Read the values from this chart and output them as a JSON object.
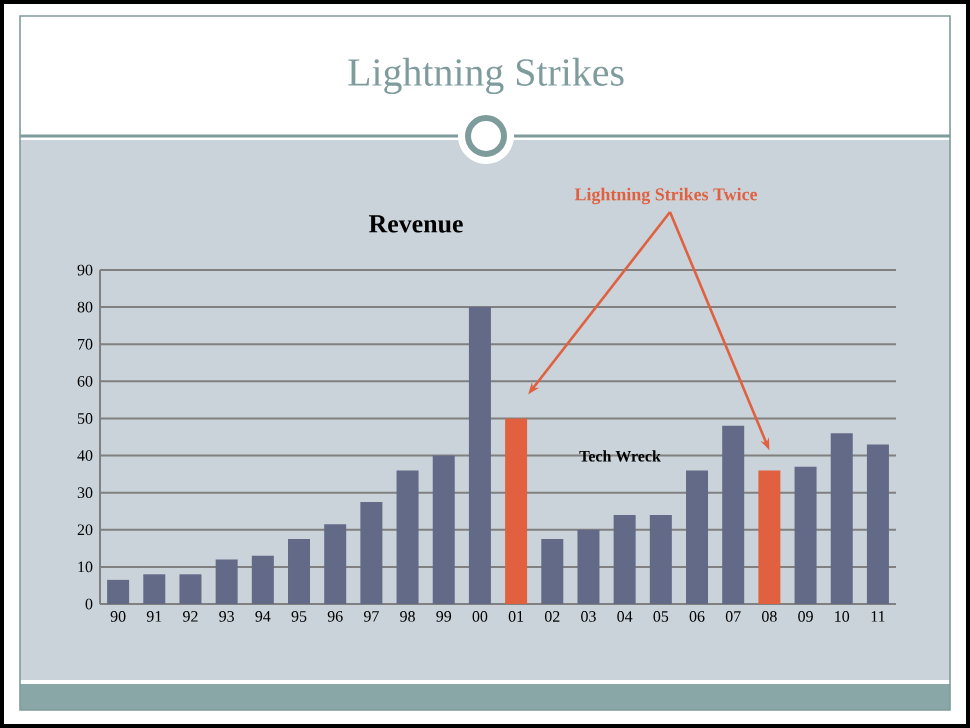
{
  "chart_data": {
    "type": "bar",
    "title": "Lightning Strikes",
    "subtitle": "Revenue",
    "categories": [
      "90",
      "91",
      "92",
      "93",
      "94",
      "95",
      "96",
      "97",
      "98",
      "99",
      "00",
      "01",
      "02",
      "03",
      "04",
      "05",
      "06",
      "07",
      "08",
      "09",
      "10",
      "11"
    ],
    "values": [
      6.5,
      8,
      8,
      12,
      13,
      17.5,
      21.5,
      27.5,
      36,
      40,
      80,
      50,
      17.5,
      20,
      24,
      24,
      36,
      48,
      36,
      37,
      46,
      43
    ],
    "colors": [
      "#636a87",
      "#636a87",
      "#636a87",
      "#636a87",
      "#636a87",
      "#636a87",
      "#636a87",
      "#636a87",
      "#636a87",
      "#636a87",
      "#636a87",
      "#e0603f",
      "#636a87",
      "#636a87",
      "#636a87",
      "#636a87",
      "#636a87",
      "#636a87",
      "#e0603f",
      "#636a87",
      "#636a87",
      "#636a87"
    ],
    "ylim": [
      0,
      90
    ],
    "yticks": [
      0,
      10,
      20,
      30,
      40,
      50,
      60,
      70,
      80,
      90
    ],
    "grid": "y",
    "annotations": [
      "Lightning Strikes Twice",
      "Tech Wreck"
    ]
  }
}
